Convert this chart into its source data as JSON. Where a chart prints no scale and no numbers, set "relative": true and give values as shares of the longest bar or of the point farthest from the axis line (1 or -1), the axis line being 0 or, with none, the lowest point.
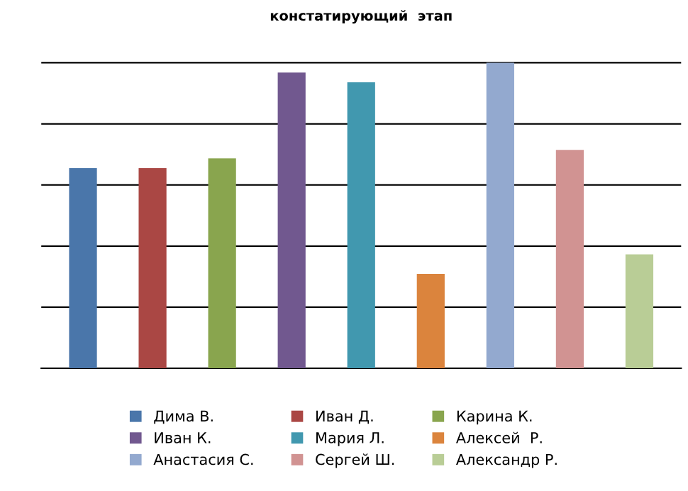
{
  "chart_data": {
    "type": "bar",
    "title": "констатирующий  этап",
    "relative": true,
    "grid": "y",
    "legend": "bottom",
    "stacked": true,
    "categories": [
      null,
      null,
      null,
      null,
      null,
      null,
      null,
      null,
      null
    ],
    "series": [
      {
        "name": "Дима В.",
        "color": "#4a76aa",
        "values": [
          0.655,
          null,
          null,
          null,
          null,
          null,
          null,
          null,
          null
        ]
      },
      {
        "name": "Иван Д.",
        "color": "#aa4744",
        "values": [
          null,
          0.655,
          null,
          null,
          null,
          null,
          null,
          null,
          null
        ]
      },
      {
        "name": "Карина К.",
        "color": "#89a54e",
        "values": [
          null,
          null,
          0.687,
          null,
          null,
          null,
          null,
          null,
          null
        ]
      },
      {
        "name": "Иван К.",
        "color": "#71588f",
        "values": [
          null,
          null,
          null,
          0.968,
          null,
          null,
          null,
          null,
          null
        ]
      },
      {
        "name": "Мария Л.",
        "color": "#4198af",
        "values": [
          null,
          null,
          null,
          null,
          0.936,
          null,
          null,
          null,
          null
        ]
      },
      {
        "name": "Алексей  Р.",
        "color": "#db843d",
        "values": [
          null,
          null,
          null,
          null,
          null,
          0.309,
          null,
          null,
          null
        ]
      },
      {
        "name": "Анастасия С.",
        "color": "#93a9cf",
        "values": [
          null,
          null,
          null,
          null,
          null,
          null,
          1,
          null,
          null
        ]
      },
      {
        "name": "Сергей Ш.",
        "color": "#d19392",
        "values": [
          null,
          null,
          null,
          null,
          null,
          null,
          null,
          0.715,
          null
        ]
      },
      {
        "name": "Александр Р.",
        "color": "#b9cd96",
        "values": [
          null,
          null,
          null,
          null,
          null,
          null,
          null,
          null,
          0.373
        ]
      }
    ]
  }
}
